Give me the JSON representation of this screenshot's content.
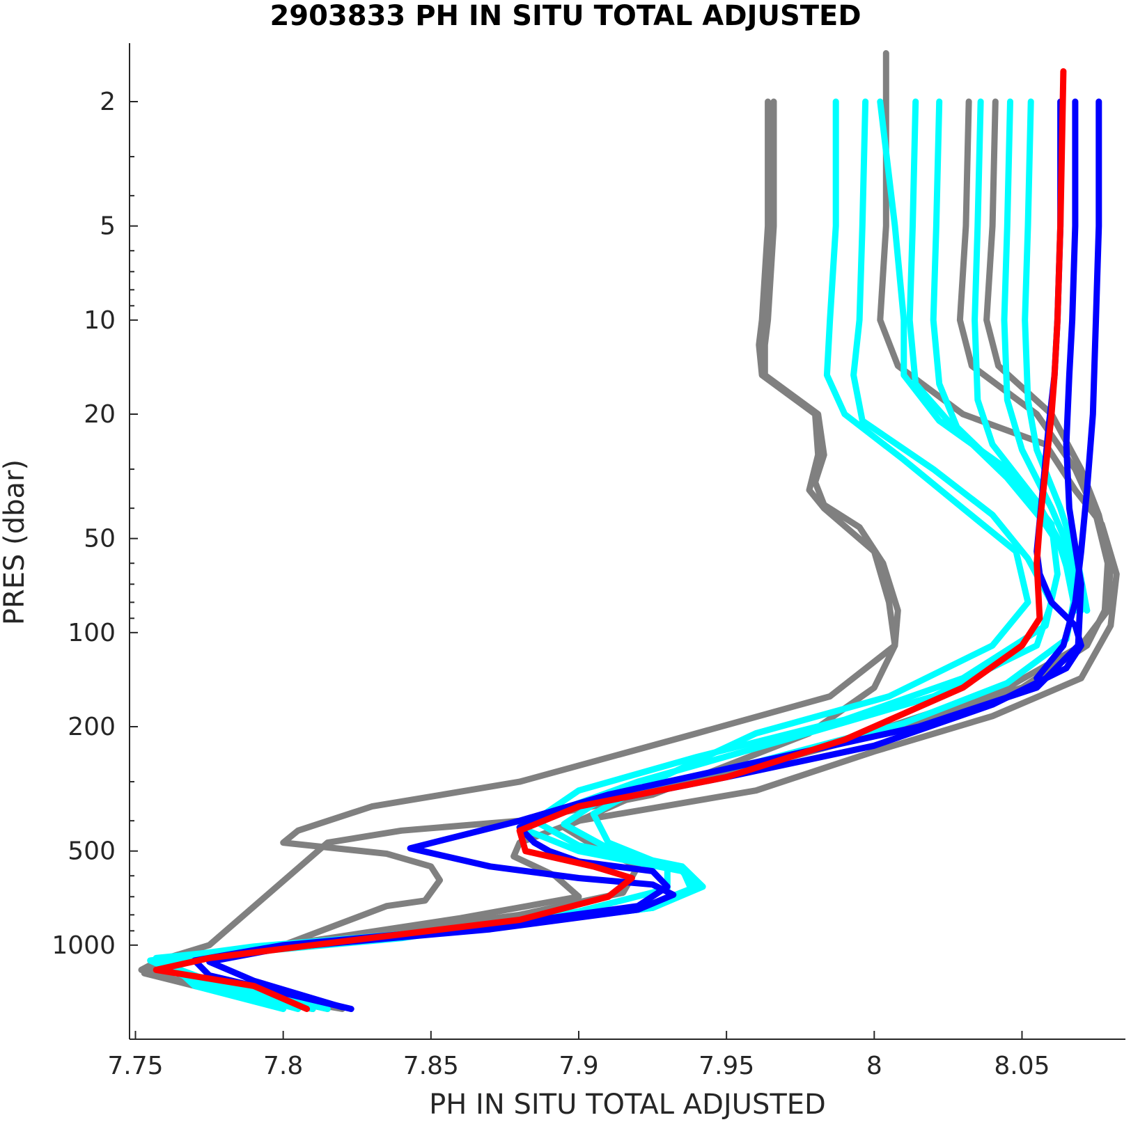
{
  "chart_data": {
    "type": "line",
    "title": "2903833  PH IN SITU TOTAL ADJUSTED",
    "xlabel": "PH IN SITU TOTAL ADJUSTED",
    "ylabel": "PRES (dbar)",
    "xlim": [
      7.748,
      8.085
    ],
    "ylim": [
      1.3,
      2000
    ],
    "yscale": "log",
    "yreversed": true,
    "xticks": [
      7.75,
      7.8,
      7.85,
      7.9,
      7.95,
      8.0,
      8.05
    ],
    "xtick_labels": [
      "7.75",
      "7.8",
      "7.85",
      "7.9",
      "7.95",
      "8",
      "8.05"
    ],
    "yticks": [
      2,
      5,
      10,
      20,
      50,
      100,
      200,
      500,
      1000
    ],
    "ytick_labels": [
      "2",
      "5",
      "10",
      "20",
      "50",
      "100",
      "200",
      "500",
      "1000"
    ],
    "y_minor_ticks": [
      3,
      4,
      6,
      7,
      8,
      9,
      30,
      40,
      60,
      70,
      80,
      90,
      300,
      400,
      600,
      700,
      800,
      900
    ],
    "grid": false,
    "colors": {
      "gray": "#808080",
      "cyan": "#00ffff",
      "blue": "#0000ff",
      "red": "#ff0000"
    },
    "series": [
      {
        "color": "gray",
        "x": [
          7.964,
          7.964,
          7.962,
          7.961,
          7.962,
          7.98,
          7.981,
          7.978,
          7.983,
          8.0,
          8.005,
          8.007,
          8.0,
          7.978,
          7.925,
          7.88,
          7.84,
          7.815,
          7.775,
          7.758,
          7.752,
          7.765,
          7.82
        ],
        "y": [
          2,
          5,
          10,
          12,
          15,
          20,
          27,
          35,
          40,
          55,
          80,
          110,
          150,
          210,
          330,
          400,
          430,
          470,
          1000,
          1120,
          1200,
          1300,
          1600
        ]
      },
      {
        "color": "gray",
        "x": [
          7.966,
          7.966,
          7.964,
          7.963,
          7.963,
          7.981,
          7.983,
          7.98,
          7.983,
          7.995,
          8.003,
          8.008,
          8.007,
          7.985,
          7.94,
          7.88,
          7.83,
          7.805,
          7.8,
          7.835,
          7.85,
          7.853,
          7.848,
          7.835,
          7.8,
          7.76,
          7.753,
          7.77,
          7.81
        ],
        "y": [
          2,
          5,
          10,
          12,
          15,
          20,
          27,
          33,
          39,
          46,
          60,
          85,
          110,
          160,
          210,
          300,
          360,
          430,
          470,
          510,
          560,
          620,
          720,
          750,
          1000,
          1150,
          1230,
          1350,
          1600
        ]
      },
      {
        "color": "gray",
        "x": [
          8.004,
          8.004,
          8.002,
          8.008,
          8.03,
          8.058,
          8.068,
          8.077,
          8.082,
          8.08,
          8.07,
          8.04,
          8.0,
          7.96,
          7.9,
          7.88,
          7.878,
          7.892,
          7.9,
          7.86,
          7.8,
          7.76,
          7.77,
          7.81
        ],
        "y": [
          1.4,
          5,
          10,
          14,
          20,
          25,
          35,
          45,
          65,
          95,
          140,
          185,
          240,
          320,
          400,
          470,
          520,
          600,
          700,
          820,
          1000,
          1150,
          1350,
          1600
        ]
      },
      {
        "color": "gray",
        "x": [
          8.032,
          8.031,
          8.029,
          8.033,
          8.055,
          8.068,
          8.075,
          8.079,
          8.078,
          8.072,
          8.05,
          8.01,
          7.965,
          7.92,
          7.895,
          7.905,
          7.92,
          7.915,
          7.88,
          7.82,
          7.77,
          7.76,
          7.78,
          7.815
        ],
        "y": [
          2,
          5,
          10,
          14,
          20,
          30,
          42,
          60,
          85,
          110,
          150,
          200,
          260,
          330,
          420,
          480,
          560,
          680,
          800,
          950,
          1100,
          1200,
          1350,
          1600
        ]
      },
      {
        "color": "gray",
        "x": [
          8.041,
          8.04,
          8.038,
          8.042,
          8.06,
          8.07,
          8.076,
          8.08,
          8.079,
          8.07,
          8.045,
          8.005
        ],
        "y": [
          2,
          5,
          10,
          14,
          20,
          30,
          42,
          60,
          85,
          110,
          150,
          200
        ]
      },
      {
        "color": "cyan",
        "x": [
          7.987,
          7.987,
          7.985,
          7.984,
          7.99,
          8.01,
          8.03,
          8.048,
          8.052,
          8.04,
          8.005,
          7.96,
          7.925,
          7.905,
          7.91,
          7.93,
          7.93,
          7.9,
          7.84,
          7.79,
          7.76,
          7.775,
          7.81
        ],
        "y": [
          2,
          5,
          10,
          15,
          20,
          28,
          40,
          55,
          80,
          110,
          160,
          210,
          300,
          380,
          470,
          560,
          660,
          780,
          950,
          1050,
          1150,
          1300,
          1600
        ]
      },
      {
        "color": "cyan",
        "x": [
          7.997,
          7.996,
          7.995,
          7.993,
          7.996,
          8.02,
          8.04,
          8.052,
          8.06,
          8.055,
          8.02,
          7.97,
          7.92,
          7.89,
          7.88,
          7.9,
          7.935,
          7.94,
          7.925,
          7.88,
          7.81,
          7.76,
          7.77,
          7.8
        ],
        "y": [
          2,
          5,
          10,
          15,
          21,
          30,
          42,
          58,
          80,
          110,
          160,
          220,
          300,
          380,
          420,
          500,
          580,
          660,
          760,
          860,
          990,
          1100,
          1350,
          1600
        ]
      },
      {
        "color": "cyan",
        "x": [
          8.002,
          8.007,
          8.01,
          8.01,
          8.022,
          8.045,
          8.06,
          8.062,
          8.058,
          8.03,
          7.99,
          7.94,
          7.9,
          7.885,
          7.9,
          7.935,
          7.942,
          7.925,
          7.87,
          7.8,
          7.757,
          7.772,
          7.815
        ],
        "y": [
          2,
          5,
          10,
          15,
          21,
          30,
          45,
          65,
          95,
          140,
          190,
          250,
          320,
          400,
          480,
          560,
          650,
          760,
          880,
          1000,
          1100,
          1300,
          1600
        ]
      },
      {
        "color": "cyan",
        "x": [
          8.014,
          8.013,
          8.012,
          8.014,
          8.025,
          8.045,
          8.062,
          8.068,
          8.065,
          8.045,
          8.01,
          7.96,
          7.91,
          7.895,
          7.91,
          7.935,
          7.938,
          7.92,
          7.86,
          7.79,
          7.755,
          7.77,
          7.805
        ],
        "y": [
          2,
          5,
          10,
          16,
          21,
          32,
          50,
          75,
          105,
          145,
          195,
          260,
          330,
          410,
          490,
          570,
          660,
          770,
          890,
          1010,
          1120,
          1300,
          1600
        ]
      },
      {
        "color": "cyan",
        "x": [
          8.022,
          8.021,
          8.02,
          8.022,
          8.028,
          8.05,
          8.064,
          8.068
        ],
        "y": [
          2,
          5,
          10,
          16,
          22,
          35,
          55,
          85
        ]
      },
      {
        "color": "cyan",
        "x": [
          8.036,
          8.035,
          8.034,
          8.035,
          8.04,
          8.055,
          8.066,
          8.07
        ],
        "y": [
          2,
          5,
          10,
          18,
          25,
          38,
          58,
          85
        ]
      },
      {
        "color": "cyan",
        "x": [
          8.046,
          8.045,
          8.044,
          8.045,
          8.05,
          8.06,
          8.068,
          8.072
        ],
        "y": [
          2,
          5,
          10,
          18,
          26,
          40,
          60,
          85
        ]
      },
      {
        "color": "cyan",
        "x": [
          8.053,
          8.052,
          8.051,
          8.052,
          8.055,
          8.063,
          8.069,
          8.072
        ],
        "y": [
          2,
          5,
          10,
          18,
          26,
          40,
          60,
          85
        ]
      },
      {
        "color": "blue",
        "x": [
          8.063,
          8.063,
          8.062,
          8.061,
          8.059,
          8.057,
          8.055,
          8.056,
          8.06,
          8.068,
          8.07,
          8.065,
          8.04,
          8.0,
          7.95,
          7.9,
          7.88,
          7.885,
          7.89,
          7.9,
          7.925,
          7.93,
          7.92,
          7.87,
          7.8,
          7.77,
          7.775,
          7.823
        ],
        "y": [
          2,
          5,
          10,
          15,
          22,
          35,
          55,
          65,
          80,
          95,
          110,
          130,
          170,
          230,
          290,
          360,
          420,
          470,
          500,
          540,
          580,
          650,
          750,
          870,
          1000,
          1120,
          1250,
          1600
        ]
      },
      {
        "color": "blue",
        "x": [
          8.068,
          8.068,
          8.067,
          8.066,
          8.065,
          8.066,
          8.07,
          8.069,
          8.055,
          8.015,
          7.96,
          7.91,
          7.88,
          7.843,
          7.87,
          7.9,
          7.925,
          7.932,
          7.92,
          7.87,
          7.8,
          7.775,
          7.79,
          7.82
        ],
        "y": [
          2,
          5,
          10,
          15,
          25,
          40,
          70,
          110,
          150,
          200,
          260,
          330,
          400,
          490,
          560,
          610,
          640,
          690,
          770,
          890,
          1020,
          1130,
          1300,
          1580
        ]
      },
      {
        "color": "blue",
        "x": [
          8.076,
          8.076,
          8.075,
          8.074,
          8.072,
          8.07,
          8.068,
          8.064,
          8.055
        ],
        "y": [
          2,
          5,
          10,
          20,
          35,
          55,
          80,
          110,
          140
        ]
      },
      {
        "color": "red",
        "x": [
          8.064,
          8.063,
          8.062,
          8.061,
          8.06,
          8.058,
          8.056,
          8.055,
          8.056,
          8.05,
          8.03,
          7.99,
          7.95,
          7.9,
          7.88,
          7.882,
          7.905,
          7.918,
          7.91,
          7.88,
          7.81,
          7.775,
          7.757,
          7.79,
          7.808
        ],
        "y": [
          1.6,
          5,
          10,
          15,
          20,
          30,
          45,
          60,
          90,
          110,
          150,
          220,
          290,
          360,
          430,
          500,
          560,
          610,
          700,
          830,
          1000,
          1100,
          1200,
          1350,
          1600
        ]
      }
    ]
  }
}
